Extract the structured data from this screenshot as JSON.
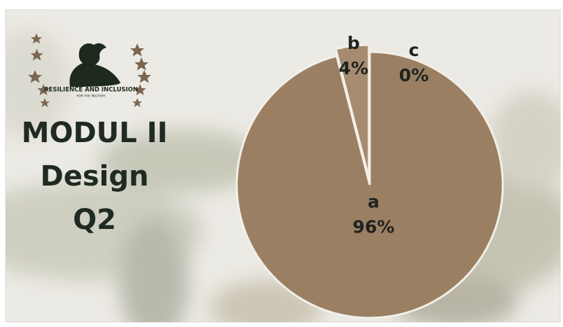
{
  "slide": {
    "title_lines": [
      "MODUL II",
      "Design",
      "Q2"
    ],
    "logo_text": "RESILIENCE AND INCLUSION",
    "logo_subtext": "FOR THE MILITARY"
  },
  "chart_data": {
    "type": "pie",
    "categories": [
      "a",
      "b",
      "c"
    ],
    "values": [
      96,
      4,
      0
    ],
    "value_labels": [
      "96%",
      "4%",
      "0%"
    ],
    "colors": [
      "#9b7f63",
      "#a68b70",
      "#b09679"
    ],
    "explode": [
      0,
      1,
      0
    ],
    "start_angle": 0,
    "direction": "clockwise"
  }
}
